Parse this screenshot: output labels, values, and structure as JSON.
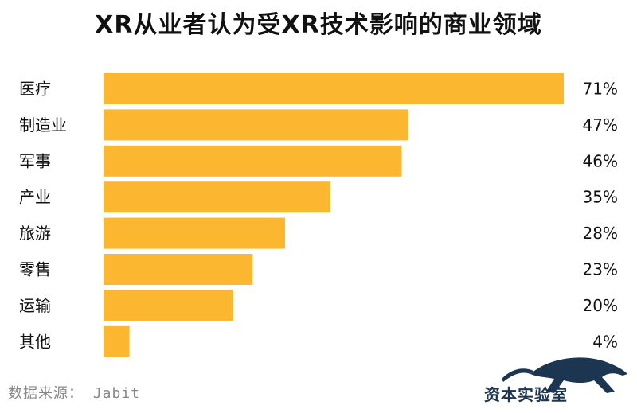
{
  "chart_data": {
    "type": "bar",
    "orientation": "horizontal",
    "title": "XR从业者认为受XR技术影响的商业领域",
    "categories": [
      "医疗",
      "制造业",
      "军事",
      "产业",
      "旅游",
      "零售",
      "运输",
      "其他"
    ],
    "values": [
      71,
      47,
      46,
      35,
      28,
      23,
      20,
      4
    ],
    "value_labels": [
      "71%",
      "47%",
      "46%",
      "35%",
      "28%",
      "23%",
      "20%",
      "4%"
    ],
    "xlim": [
      0,
      71
    ],
    "grid": false,
    "bar_color": "#FBB730"
  },
  "source": "数据来源： Jabit",
  "watermark": {
    "text": "资本实验室",
    "icon": "panther-icon",
    "color": "#1C3550"
  }
}
